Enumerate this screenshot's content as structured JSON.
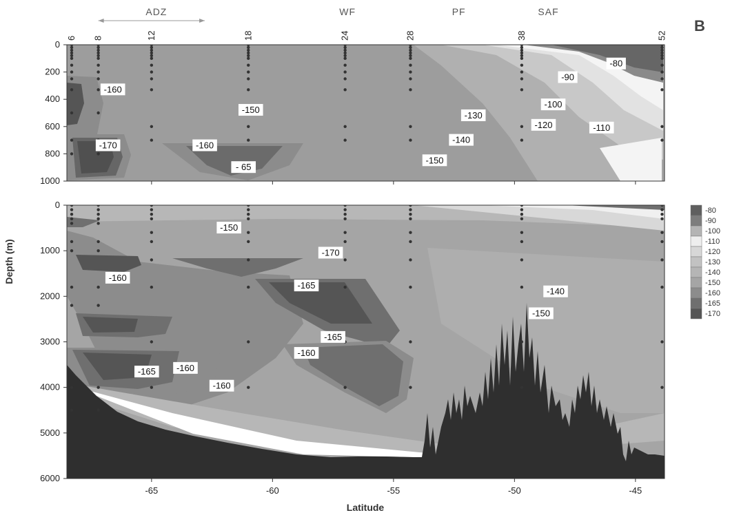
{
  "chart_data": {
    "type": "contour",
    "panel_letter": "B",
    "xlabel": "Latitude",
    "ylabel": "Depth (m)",
    "xlim": [
      -68.5,
      -43.8
    ],
    "x_ticks": [
      -65,
      -60,
      -55,
      -50,
      -45
    ],
    "x_tick_labels": [
      "-65",
      "-60",
      "-55",
      "-50",
      "-45"
    ],
    "fronts": [
      {
        "label": "ADZ",
        "x": -64.8,
        "x_range": [
          -67.2,
          -62.8
        ]
      },
      {
        "label": "WF",
        "x": -56.9
      },
      {
        "label": "PF",
        "x": -52.3
      },
      {
        "label": "SAF",
        "x": -48.6
      }
    ],
    "stations": [
      {
        "label": "6",
        "lat": -68.3
      },
      {
        "label": "8",
        "lat": -67.2
      },
      {
        "label": "12",
        "lat": -65.0
      },
      {
        "label": "18",
        "lat": -61.0
      },
      {
        "label": "24",
        "lat": -57.0
      },
      {
        "label": "28",
        "lat": -54.3
      },
      {
        "label": "38",
        "lat": -49.7
      },
      {
        "label": "52",
        "lat": -43.9
      }
    ],
    "panels": [
      {
        "name": "upper",
        "ylim": [
          1000,
          0
        ],
        "y_ticks": [
          0,
          200,
          400,
          600,
          800,
          1000
        ],
        "y_tick_labels": [
          "0",
          "200",
          "400",
          "600",
          "800",
          "1000"
        ],
        "contour_labels": [
          {
            "text": "-160",
            "lat": -66.6,
            "depth": 330
          },
          {
            "text": "-150",
            "lat": -60.9,
            "depth": 480
          },
          {
            "text": "-170",
            "lat": -66.8,
            "depth": 740
          },
          {
            "text": "-160",
            "lat": -62.8,
            "depth": 740
          },
          {
            "text": "- 65",
            "lat": -61.2,
            "depth": 900
          },
          {
            "text": "-80",
            "lat": -45.8,
            "depth": 140
          },
          {
            "text": "-90",
            "lat": -47.8,
            "depth": 240
          },
          {
            "text": "-100",
            "lat": -48.4,
            "depth": 440
          },
          {
            "text": "-130",
            "lat": -51.7,
            "depth": 520
          },
          {
            "text": "-120",
            "lat": -48.8,
            "depth": 590
          },
          {
            "text": "-110",
            "lat": -46.4,
            "depth": 610
          },
          {
            "text": "-140",
            "lat": -52.2,
            "depth": 700
          },
          {
            "text": "-150",
            "lat": -53.3,
            "depth": 850
          }
        ]
      },
      {
        "name": "lower",
        "ylim": [
          6000,
          0
        ],
        "y_ticks": [
          0,
          1000,
          2000,
          3000,
          4000,
          5000,
          6000
        ],
        "y_tick_labels": [
          "0",
          "1000",
          "2000",
          "3000",
          "4000",
          "5000",
          "6000"
        ],
        "contour_labels": [
          {
            "text": "-150",
            "lat": -61.8,
            "depth": 500
          },
          {
            "text": "-170",
            "lat": -57.6,
            "depth": 1050
          },
          {
            "text": "-160",
            "lat": -66.4,
            "depth": 1600
          },
          {
            "text": "-165",
            "lat": -58.6,
            "depth": 1770
          },
          {
            "text": "-140",
            "lat": -48.3,
            "depth": 1900
          },
          {
            "text": "-150",
            "lat": -48.9,
            "depth": 2380
          },
          {
            "text": "-165",
            "lat": -57.5,
            "depth": 2900
          },
          {
            "text": "-160",
            "lat": -58.6,
            "depth": 3250
          },
          {
            "text": "-165",
            "lat": -65.2,
            "depth": 3660
          },
          {
            "text": "-160",
            "lat": -63.6,
            "depth": 3580
          },
          {
            "text": "-160",
            "lat": -62.1,
            "depth": 3970
          }
        ]
      }
    ],
    "legend": {
      "placement": "right",
      "levels": [
        "-80",
        "-90",
        "-100",
        "-110",
        "-120",
        "-130",
        "-140",
        "-150",
        "-160",
        "-165",
        "-170"
      ],
      "colors": [
        "#5f5f5f",
        "#7d7d7d",
        "#b4b4b4",
        "#eeeeee",
        "#d7d7d7",
        "#c2c2c2",
        "#b5b5b5",
        "#a5a5a5",
        "#8c8c8c",
        "#6f6f6f",
        "#555555"
      ]
    },
    "fill_colors": {
      "background": "#a5a5a5",
      "lightest": "#f4f4f4",
      "mid": "#8c8c8c",
      "dark": "#666666",
      "darkest": "#505050",
      "bathymetry": "#2f2f2f"
    }
  }
}
